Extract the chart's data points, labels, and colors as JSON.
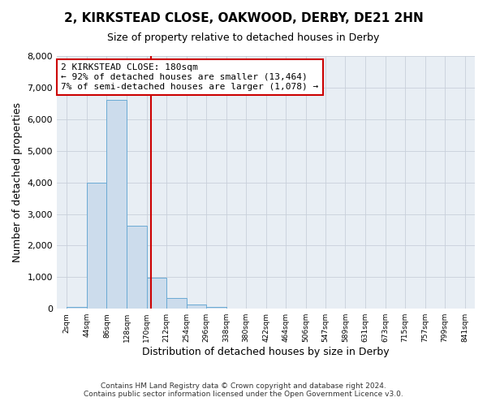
{
  "title_line1": "2, KIRKSTEAD CLOSE, OAKWOOD, DERBY, DE21 2HN",
  "title_line2": "Size of property relative to detached houses in Derby",
  "xlabel": "Distribution of detached houses by size in Derby",
  "ylabel": "Number of detached properties",
  "bar_color": "#ccdcec",
  "bar_edgecolor": "#6aaad4",
  "vline_x": 180,
  "vline_color": "#cc0000",
  "annotation_title": "2 KIRKSTEAD CLOSE: 180sqm",
  "annotation_line1": "← 92% of detached houses are smaller (13,464)",
  "annotation_line2": "7% of semi-detached houses are larger (1,078) →",
  "annotation_box_edgecolor": "#cc0000",
  "ylim": [
    0,
    8000
  ],
  "yticks": [
    0,
    1000,
    2000,
    3000,
    4000,
    5000,
    6000,
    7000,
    8000
  ],
  "bin_edges": [
    2,
    44,
    86,
    128,
    170,
    212,
    254,
    296,
    338,
    380,
    422,
    464,
    506,
    547,
    589,
    631,
    673,
    715,
    757,
    799,
    841
  ],
  "bin_heights": [
    60,
    3980,
    6620,
    2620,
    980,
    340,
    140,
    60,
    0,
    0,
    0,
    0,
    0,
    0,
    0,
    0,
    0,
    0,
    0,
    0
  ],
  "footer_line1": "Contains HM Land Registry data © Crown copyright and database right 2024.",
  "footer_line2": "Contains public sector information licensed under the Open Government Licence v3.0.",
  "bg_color": "#ffffff",
  "plot_bg_color": "#e8eef4",
  "grid_color": "#c8d0da"
}
